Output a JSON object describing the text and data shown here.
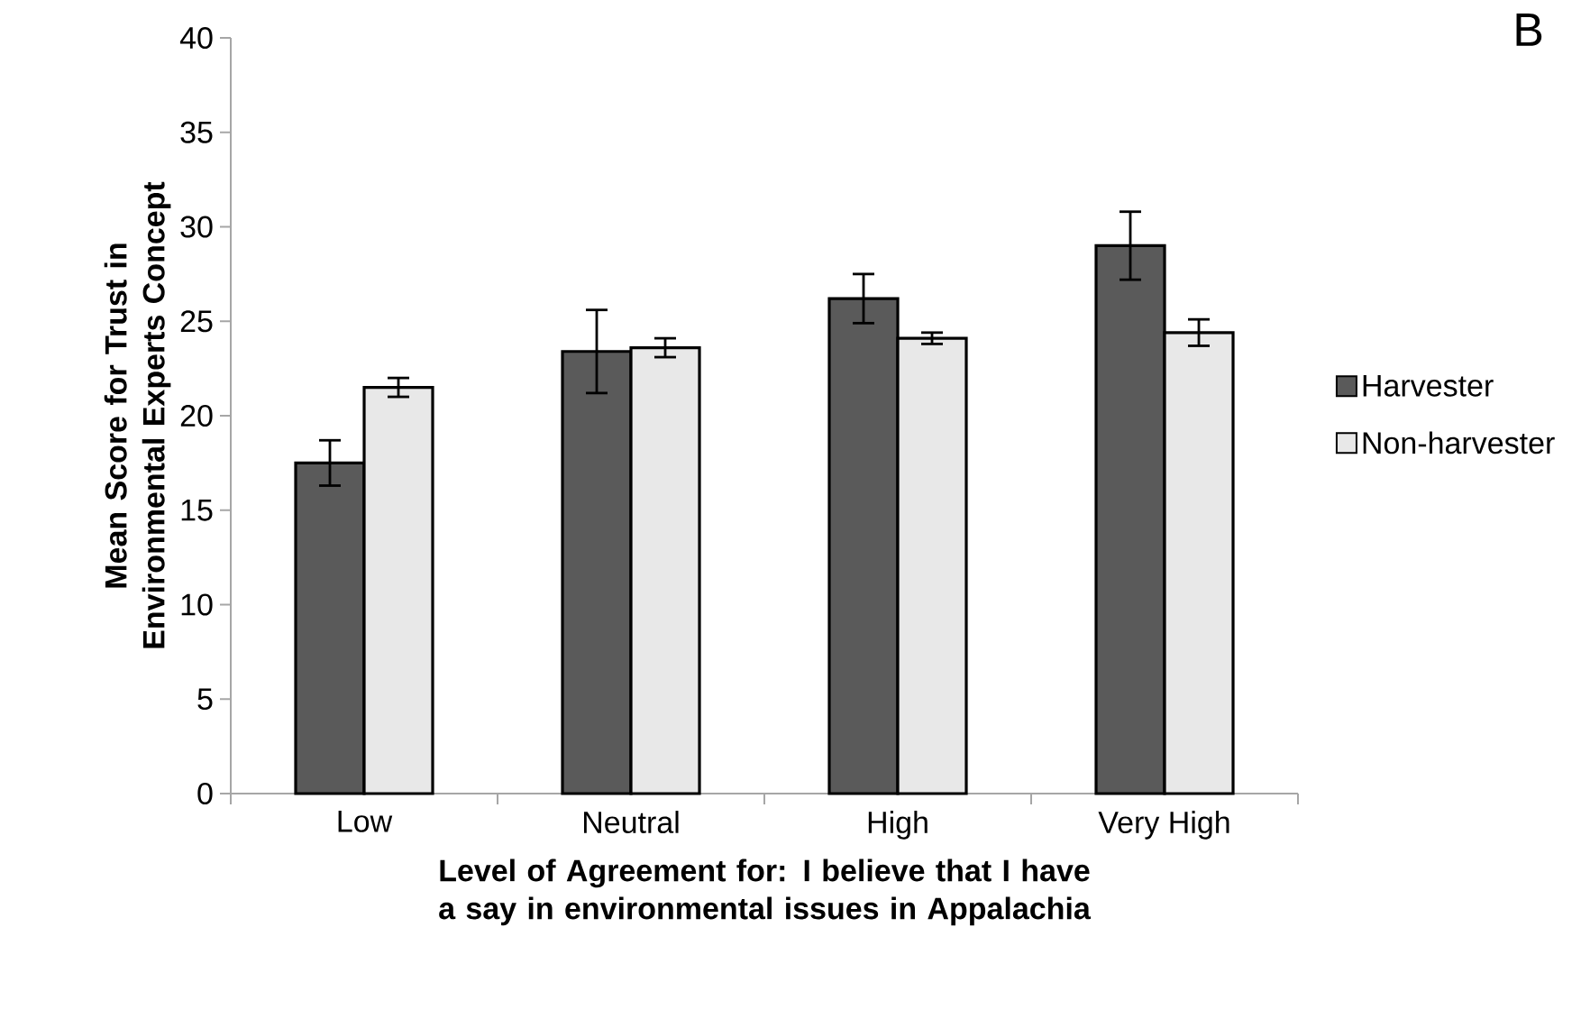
{
  "chart_data": {
    "type": "bar",
    "annotations": [
      "B"
    ],
    "xlabel": "Level of Agreement for: I believe that I have a say in environmental issues in Appalachia",
    "ylabel": "Mean Score for Trust in Environmental Experts Concept",
    "categories": [
      "Low",
      "Neutral",
      "High",
      "Very High"
    ],
    "series": [
      {
        "name": "Harvester",
        "color": "#5a5a5a",
        "values": [
          17.5,
          23.4,
          26.2,
          29.0
        ],
        "errors": [
          1.2,
          2.2,
          1.3,
          1.8
        ]
      },
      {
        "name": "Non-harvester",
        "color": "#e8e8e8",
        "values": [
          21.5,
          23.6,
          24.1,
          24.4
        ],
        "errors": [
          0.5,
          0.5,
          0.3,
          0.7
        ]
      }
    ],
    "ylim": [
      0,
      40
    ],
    "yticks": [
      0,
      5,
      10,
      15,
      20,
      25,
      30,
      35,
      40
    ],
    "grid": false,
    "legend": "right"
  }
}
